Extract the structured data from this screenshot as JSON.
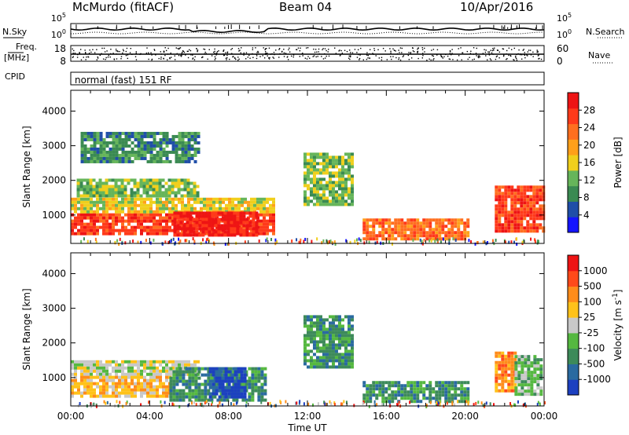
{
  "header": {
    "station": "McMurdo (fitACF)",
    "beam": "Beam 04",
    "date": "10/Apr/2016"
  },
  "chart_data": [
    {
      "type": "line",
      "panel": "noise",
      "left_label": "N.Sky",
      "right_label": "N.Search",
      "left_ticks": [
        "10^5",
        "10^0"
      ],
      "right_ticks": [
        "10^5",
        "10^0"
      ],
      "series": [
        {
          "name": "N.Sky",
          "style": "solid"
        },
        {
          "name": "N.Search",
          "style": "dotted"
        }
      ]
    },
    {
      "type": "line",
      "panel": "frequency",
      "left_label": [
        "Freq.",
        "[MHz]"
      ],
      "right_label": "Nave",
      "left_ticks": [
        18,
        8
      ],
      "right_ticks": [
        60,
        0
      ]
    },
    {
      "type": "table",
      "panel": "cpid",
      "label": "CPID",
      "text": "normal (fast) 151 RF"
    },
    {
      "type": "heatmap",
      "panel": "power",
      "ylabel": "Slant Range [km]",
      "yticks": [
        1000,
        2000,
        3000,
        4000
      ],
      "ylim": [
        180,
        4600
      ],
      "xlim": [
        0,
        24
      ],
      "colorbar": {
        "label": "Power [dB]",
        "ticks": [
          "4",
          "8",
          "12",
          "16",
          "20",
          "24",
          "28"
        ],
        "colors": [
          "#1414ff",
          "#1f4ea8",
          "#3a8a52",
          "#66b55a",
          "#f0cf1c",
          "#ffa01a",
          "#ff6f1f",
          "#ff3a1a",
          "#ee1414"
        ]
      },
      "regions": [
        {
          "t": [
            0,
            10.3
          ],
          "r": [
            500,
            1050
          ],
          "level": 7
        },
        {
          "t": [
            0,
            10.3
          ],
          "r": [
            1050,
            1500
          ],
          "level": 4
        },
        {
          "t": [
            5.2,
            9.4
          ],
          "r": [
            400,
            1100
          ],
          "level": 8
        },
        {
          "t": [
            0.3,
            6.5
          ],
          "r": [
            1550,
            2050
          ],
          "level": 3
        },
        {
          "t": [
            0.5,
            6.5
          ],
          "r": [
            2500,
            3400
          ],
          "level": 2
        },
        {
          "t": [
            11.8,
            14.3
          ],
          "r": [
            1300,
            2800
          ],
          "level": 3
        },
        {
          "t": [
            14.8,
            20.2
          ],
          "r": [
            300,
            900
          ],
          "level": 6
        },
        {
          "t": [
            21.5,
            23.9
          ],
          "r": [
            500,
            1850
          ],
          "level": 7
        }
      ]
    },
    {
      "type": "heatmap",
      "panel": "velocity",
      "ylabel": "Slant Range [km]",
      "yticks": [
        1000,
        2000,
        3000,
        4000
      ],
      "ylim": [
        180,
        4600
      ],
      "xlim": [
        0,
        24
      ],
      "xticks": [
        "00:00",
        "04:00",
        "08:00",
        "12:00",
        "16:00",
        "20:00",
        "00:00"
      ],
      "xlabel": "Time UT",
      "colorbar": {
        "label": "Velocity [m s^-1]",
        "ticks": [
          "1000",
          "500",
          "100",
          "25",
          "-25",
          "-100",
          "-500",
          "-1000"
        ],
        "colors": [
          "#1c40c0",
          "#2a6aa0",
          "#3d8a5a",
          "#55b840",
          "#c8c8c8",
          "#ffc21a",
          "#ff8c1a",
          "#ff4a1a",
          "#ee1414"
        ]
      },
      "regions": [
        {
          "t": [
            0,
            6.5
          ],
          "r": [
            1100,
            1500
          ],
          "level": 4
        },
        {
          "t": [
            0,
            5.0
          ],
          "r": [
            500,
            1050
          ],
          "level": 5
        },
        {
          "t": [
            5.0,
            9.8
          ],
          "r": [
            350,
            1300
          ],
          "level": 2
        },
        {
          "t": [
            7.0,
            8.9
          ],
          "r": [
            400,
            1300
          ],
          "level": 0
        },
        {
          "t": [
            11.8,
            14.3
          ],
          "r": [
            1300,
            2800
          ],
          "level": 2
        },
        {
          "t": [
            14.8,
            20.2
          ],
          "r": [
            300,
            900
          ],
          "level": 2
        },
        {
          "t": [
            21.5,
            22.5
          ],
          "r": [
            600,
            1750
          ],
          "level": 6
        },
        {
          "t": [
            22.5,
            23.9
          ],
          "r": [
            500,
            1650
          ],
          "level": 3
        }
      ]
    }
  ]
}
